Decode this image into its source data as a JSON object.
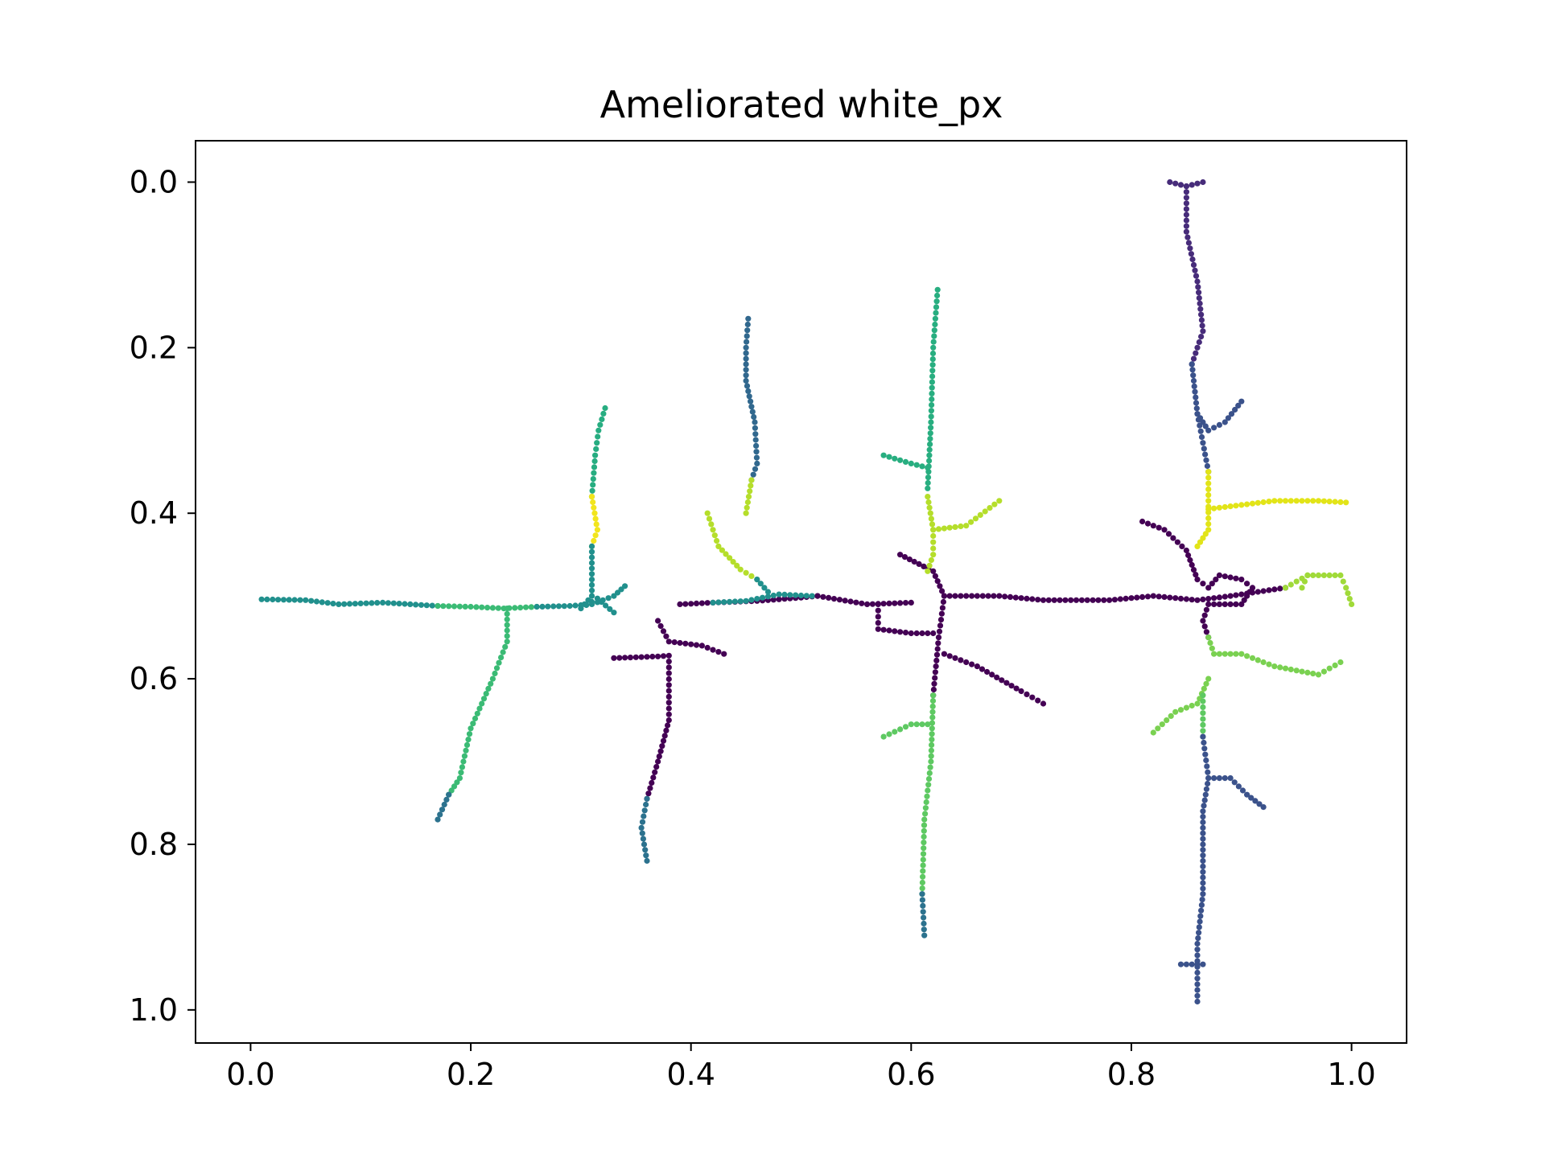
{
  "chart_data": {
    "type": "scatter",
    "title": "Ameliorated white_px",
    "xlabel": "",
    "ylabel": "",
    "xlim": [
      -0.05,
      1.05
    ],
    "ylim": [
      1.04,
      -0.05
    ],
    "y_inverted": true,
    "grid": false,
    "colormap": "viridis",
    "x_ticks": [
      {
        "value": 0.0,
        "label": "0.0"
      },
      {
        "value": 0.2,
        "label": "0.2"
      },
      {
        "value": 0.4,
        "label": "0.4"
      },
      {
        "value": 0.6,
        "label": "0.6"
      },
      {
        "value": 0.8,
        "label": "0.8"
      },
      {
        "value": 1.0,
        "label": "1.0"
      }
    ],
    "y_ticks": [
      {
        "value": 0.0,
        "label": "0.0"
      },
      {
        "value": 0.2,
        "label": "0.2"
      },
      {
        "value": 0.4,
        "label": "0.4"
      },
      {
        "value": 0.6,
        "label": "0.6"
      },
      {
        "value": 0.8,
        "label": "0.8"
      },
      {
        "value": 1.0,
        "label": "1.0"
      }
    ],
    "segments": [
      {
        "color": "#21908d",
        "points": [
          [
            0.01,
            0.504
          ],
          [
            0.05,
            0.505
          ],
          [
            0.08,
            0.51
          ],
          [
            0.12,
            0.508
          ],
          [
            0.17,
            0.512
          ]
        ]
      },
      {
        "color": "#3bbb75",
        "points": [
          [
            0.17,
            0.512
          ],
          [
            0.2,
            0.513
          ],
          [
            0.23,
            0.515
          ],
          [
            0.26,
            0.513
          ]
        ]
      },
      {
        "color": "#21908d",
        "points": [
          [
            0.26,
            0.513
          ],
          [
            0.29,
            0.512
          ],
          [
            0.31,
            0.51
          ],
          [
            0.33,
            0.5
          ],
          [
            0.34,
            0.488
          ]
        ]
      },
      {
        "color": "#27ad81",
        "points": [
          [
            0.31,
            0.38
          ],
          [
            0.313,
            0.33
          ],
          [
            0.316,
            0.3
          ],
          [
            0.322,
            0.273
          ]
        ]
      },
      {
        "color": "#f2e51d",
        "points": [
          [
            0.31,
            0.38
          ],
          [
            0.315,
            0.42
          ],
          [
            0.31,
            0.44
          ]
        ]
      },
      {
        "color": "#21908d",
        "points": [
          [
            0.31,
            0.44
          ],
          [
            0.31,
            0.5
          ],
          [
            0.3,
            0.515
          ],
          [
            0.315,
            0.503
          ],
          [
            0.33,
            0.52
          ]
        ]
      },
      {
        "color": "#3bbb75",
        "points": [
          [
            0.233,
            0.515
          ],
          [
            0.233,
            0.555
          ],
          [
            0.22,
            0.6
          ],
          [
            0.2,
            0.66
          ],
          [
            0.19,
            0.72
          ],
          [
            0.18,
            0.74
          ]
        ]
      },
      {
        "color": "#2c728e",
        "points": [
          [
            0.18,
            0.74
          ],
          [
            0.17,
            0.77
          ]
        ]
      },
      {
        "color": "#440154",
        "points": [
          [
            0.39,
            0.51
          ],
          [
            0.42,
            0.508
          ],
          [
            0.46,
            0.506
          ],
          [
            0.5,
            0.502
          ],
          [
            0.515,
            0.5
          ]
        ]
      },
      {
        "color": "#21908d",
        "points": [
          [
            0.42,
            0.508
          ],
          [
            0.45,
            0.506
          ],
          [
            0.48,
            0.498
          ],
          [
            0.51,
            0.5
          ]
        ]
      },
      {
        "color": "#b5de2b",
        "points": [
          [
            0.415,
            0.4
          ],
          [
            0.425,
            0.44
          ],
          [
            0.445,
            0.468
          ],
          [
            0.46,
            0.48
          ]
        ]
      },
      {
        "color": "#21908d",
        "points": [
          [
            0.46,
            0.48
          ],
          [
            0.47,
            0.495
          ]
        ]
      },
      {
        "color": "#31688e",
        "points": [
          [
            0.452,
            0.165
          ],
          [
            0.45,
            0.2
          ],
          [
            0.45,
            0.24
          ],
          [
            0.458,
            0.29
          ],
          [
            0.46,
            0.34
          ],
          [
            0.455,
            0.36
          ]
        ]
      },
      {
        "color": "#b5de2b",
        "points": [
          [
            0.455,
            0.36
          ],
          [
            0.45,
            0.4
          ]
        ]
      },
      {
        "color": "#440154",
        "points": [
          [
            0.37,
            0.53
          ],
          [
            0.38,
            0.555
          ],
          [
            0.41,
            0.56
          ],
          [
            0.43,
            0.57
          ]
        ]
      },
      {
        "color": "#440154",
        "points": [
          [
            0.33,
            0.575
          ],
          [
            0.37,
            0.573
          ],
          [
            0.38,
            0.572
          ],
          [
            0.38,
            0.65
          ],
          [
            0.37,
            0.7
          ],
          [
            0.36,
            0.745
          ]
        ]
      },
      {
        "color": "#2c728e",
        "points": [
          [
            0.36,
            0.745
          ],
          [
            0.355,
            0.78
          ],
          [
            0.36,
            0.82
          ]
        ]
      },
      {
        "color": "#440154",
        "points": [
          [
            0.515,
            0.5
          ],
          [
            0.56,
            0.51
          ],
          [
            0.6,
            0.508
          ]
        ]
      },
      {
        "color": "#440154",
        "points": [
          [
            0.57,
            0.51
          ],
          [
            0.57,
            0.54
          ],
          [
            0.6,
            0.545
          ],
          [
            0.62,
            0.545
          ]
        ]
      },
      {
        "color": "#440154",
        "points": [
          [
            0.59,
            0.45
          ],
          [
            0.62,
            0.47
          ],
          [
            0.63,
            0.5
          ],
          [
            0.68,
            0.5
          ],
          [
            0.72,
            0.505
          ],
          [
            0.78,
            0.505
          ],
          [
            0.82,
            0.5
          ],
          [
            0.86,
            0.505
          ],
          [
            0.89,
            0.5
          ],
          [
            0.94,
            0.49
          ]
        ]
      },
      {
        "color": "#440154",
        "points": [
          [
            0.63,
            0.5
          ],
          [
            0.625,
            0.55
          ],
          [
            0.62,
            0.62
          ]
        ]
      },
      {
        "color": "#440154",
        "points": [
          [
            0.63,
            0.57
          ],
          [
            0.66,
            0.585
          ],
          [
            0.7,
            0.615
          ],
          [
            0.72,
            0.63
          ]
        ]
      },
      {
        "color": "#28ae80",
        "points": [
          [
            0.624,
            0.13
          ],
          [
            0.62,
            0.2
          ],
          [
            0.618,
            0.29
          ],
          [
            0.615,
            0.37
          ]
        ]
      },
      {
        "color": "#28ae80",
        "points": [
          [
            0.575,
            0.33
          ],
          [
            0.6,
            0.34
          ],
          [
            0.615,
            0.345
          ]
        ]
      },
      {
        "color": "#b5de2b",
        "points": [
          [
            0.615,
            0.38
          ],
          [
            0.62,
            0.42
          ],
          [
            0.62,
            0.45
          ],
          [
            0.615,
            0.47
          ]
        ]
      },
      {
        "color": "#b5de2b",
        "points": [
          [
            0.62,
            0.42
          ],
          [
            0.65,
            0.415
          ],
          [
            0.68,
            0.385
          ]
        ]
      },
      {
        "color": "#5ec962",
        "points": [
          [
            0.62,
            0.62
          ],
          [
            0.618,
            0.7
          ],
          [
            0.612,
            0.77
          ],
          [
            0.61,
            0.86
          ]
        ]
      },
      {
        "color": "#5ec962",
        "points": [
          [
            0.575,
            0.67
          ],
          [
            0.6,
            0.655
          ],
          [
            0.615,
            0.655
          ]
        ]
      },
      {
        "color": "#2c728e",
        "points": [
          [
            0.61,
            0.86
          ],
          [
            0.612,
            0.91
          ]
        ]
      },
      {
        "color": "#472c7a",
        "points": [
          [
            0.835,
            0.0
          ],
          [
            0.85,
            0.005
          ],
          [
            0.865,
            0.0
          ]
        ]
      },
      {
        "color": "#472c7a",
        "points": [
          [
            0.85,
            0.005
          ],
          [
            0.85,
            0.06
          ],
          [
            0.86,
            0.12
          ],
          [
            0.865,
            0.18
          ],
          [
            0.855,
            0.22
          ]
        ]
      },
      {
        "color": "#3b528b",
        "points": [
          [
            0.855,
            0.22
          ],
          [
            0.86,
            0.28
          ],
          [
            0.87,
            0.3
          ],
          [
            0.885,
            0.29
          ],
          [
            0.9,
            0.265
          ]
        ]
      },
      {
        "color": "#3b528b",
        "points": [
          [
            0.86,
            0.28
          ],
          [
            0.87,
            0.35
          ]
        ]
      },
      {
        "color": "#e2e418",
        "points": [
          [
            0.87,
            0.35
          ],
          [
            0.87,
            0.42
          ],
          [
            0.86,
            0.44
          ]
        ]
      },
      {
        "color": "#e2e418",
        "points": [
          [
            0.87,
            0.395
          ],
          [
            0.9,
            0.39
          ],
          [
            0.93,
            0.385
          ],
          [
            0.97,
            0.385
          ],
          [
            0.995,
            0.387
          ]
        ]
      },
      {
        "color": "#440154",
        "points": [
          [
            0.81,
            0.41
          ],
          [
            0.83,
            0.42
          ],
          [
            0.85,
            0.445
          ],
          [
            0.86,
            0.48
          ],
          [
            0.87,
            0.49
          ],
          [
            0.88,
            0.475
          ],
          [
            0.9,
            0.48
          ],
          [
            0.91,
            0.49
          ],
          [
            0.9,
            0.51
          ],
          [
            0.87,
            0.51
          ],
          [
            0.865,
            0.53
          ],
          [
            0.87,
            0.55
          ]
        ]
      },
      {
        "color": "#a0da39",
        "points": [
          [
            0.94,
            0.49
          ],
          [
            0.96,
            0.475
          ],
          [
            0.99,
            0.475
          ],
          [
            0.995,
            0.49
          ],
          [
            1.0,
            0.51
          ]
        ]
      },
      {
        "color": "#a0da39",
        "points": [
          [
            0.96,
            0.475
          ],
          [
            0.955,
            0.49
          ]
        ]
      },
      {
        "color": "#7ad151",
        "points": [
          [
            0.87,
            0.55
          ],
          [
            0.875,
            0.57
          ],
          [
            0.9,
            0.57
          ],
          [
            0.93,
            0.585
          ],
          [
            0.97,
            0.595
          ],
          [
            0.99,
            0.58
          ]
        ]
      },
      {
        "color": "#7ad151",
        "points": [
          [
            0.87,
            0.6
          ],
          [
            0.86,
            0.63
          ],
          [
            0.84,
            0.64
          ],
          [
            0.82,
            0.665
          ]
        ]
      },
      {
        "color": "#5ec962",
        "points": [
          [
            0.865,
            0.62
          ],
          [
            0.865,
            0.67
          ]
        ]
      },
      {
        "color": "#3b528b",
        "points": [
          [
            0.865,
            0.67
          ],
          [
            0.87,
            0.72
          ],
          [
            0.89,
            0.72
          ],
          [
            0.905,
            0.74
          ],
          [
            0.92,
            0.755
          ]
        ]
      },
      {
        "color": "#3b528b",
        "points": [
          [
            0.87,
            0.72
          ],
          [
            0.865,
            0.76
          ],
          [
            0.865,
            0.86
          ],
          [
            0.86,
            0.92
          ],
          [
            0.86,
            0.99
          ]
        ]
      },
      {
        "color": "#3b528b",
        "points": [
          [
            0.845,
            0.945
          ],
          [
            0.865,
            0.945
          ]
        ]
      }
    ]
  }
}
